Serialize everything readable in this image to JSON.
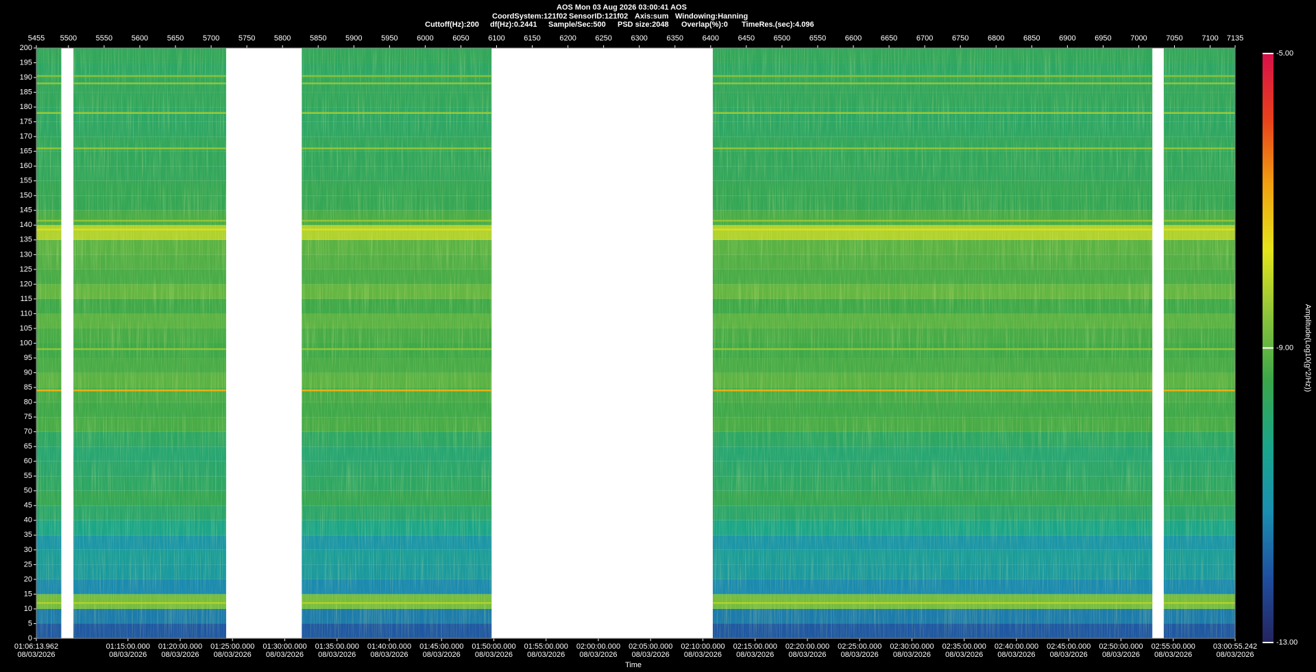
{
  "chart_data": {
    "type": "spectrogram",
    "title": "AOS  Mon 03 Aug 2026 03:00:41  AOS",
    "info_line1": [
      "CoordSystem:121f02",
      "SensorID:121f02",
      "Axis:sum",
      "Windowing:Hanning"
    ],
    "info_line2": [
      "Cuttoff(Hz):200",
      "df(Hz):0.2441",
      "Sample/Sec:500",
      "PSD size:2048",
      "Overlap(%):0",
      "TimeRes.(sec):4.096"
    ],
    "x_label": "Time",
    "colorbar_label": "Amplitude(Log10(g^2/Hz))",
    "xlim": [
      5455,
      7135
    ],
    "xticks": [
      5455,
      5500,
      5550,
      5600,
      5650,
      5700,
      5750,
      5800,
      5850,
      5900,
      5950,
      6000,
      6050,
      6100,
      6150,
      6200,
      6250,
      6300,
      6350,
      6400,
      6450,
      6500,
      6550,
      6600,
      6650,
      6700,
      6750,
      6800,
      6850,
      6900,
      6950,
      7000,
      7050,
      7100,
      7135
    ],
    "time_ticks": [
      {
        "value": 5455,
        "label": "01:06:13.962",
        "date": "08/03/2026"
      },
      {
        "value": 5583.43,
        "label": "01:15:00.000",
        "date": "08/03/2026"
      },
      {
        "value": 5656.67,
        "label": "01:20:00.000",
        "date": "08/03/2026"
      },
      {
        "value": 5729.91,
        "label": "01:25:00.000",
        "date": "08/03/2026"
      },
      {
        "value": 5803.16,
        "label": "01:30:00.000",
        "date": "08/03/2026"
      },
      {
        "value": 5876.4,
        "label": "01:35:00.000",
        "date": "08/03/2026"
      },
      {
        "value": 5949.64,
        "label": "01:40:00.000",
        "date": "08/03/2026"
      },
      {
        "value": 6022.88,
        "label": "01:45:00.000",
        "date": "08/03/2026"
      },
      {
        "value": 6096.13,
        "label": "01:50:00.000",
        "date": "08/03/2026"
      },
      {
        "value": 6169.37,
        "label": "01:55:00.000",
        "date": "08/03/2026"
      },
      {
        "value": 6242.61,
        "label": "02:00:00.000",
        "date": "08/03/2026"
      },
      {
        "value": 6315.85,
        "label": "02:05:00.000",
        "date": "08/03/2026"
      },
      {
        "value": 6389.1,
        "label": "02:10:00.000",
        "date": "08/03/2026"
      },
      {
        "value": 6462.34,
        "label": "02:15:00.000",
        "date": "08/03/2026"
      },
      {
        "value": 6535.58,
        "label": "02:20:00.000",
        "date": "08/03/2026"
      },
      {
        "value": 6608.82,
        "label": "02:25:00.000",
        "date": "08/03/2026"
      },
      {
        "value": 6682.07,
        "label": "02:30:00.000",
        "date": "08/03/2026"
      },
      {
        "value": 6755.31,
        "label": "02:35:00.000",
        "date": "08/03/2026"
      },
      {
        "value": 6828.55,
        "label": "02:40:00.000",
        "date": "08/03/2026"
      },
      {
        "value": 6901.79,
        "label": "02:45:00.000",
        "date": "08/03/2026"
      },
      {
        "value": 6975.04,
        "label": "02:50:00.000",
        "date": "08/03/2026"
      },
      {
        "value": 7048.28,
        "label": "02:55:00.000",
        "date": "08/03/2026"
      },
      {
        "value": 7135,
        "label": "03:00:55.242",
        "date": "08/03/2026"
      }
    ],
    "ylim": [
      0,
      200
    ],
    "yticks": [
      0,
      5,
      10,
      15,
      20,
      25,
      30,
      35,
      40,
      45,
      50,
      55,
      60,
      65,
      70,
      75,
      80,
      85,
      90,
      95,
      100,
      105,
      110,
      115,
      120,
      125,
      130,
      135,
      140,
      145,
      150,
      155,
      160,
      165,
      170,
      175,
      180,
      185,
      190,
      195,
      200
    ],
    "segments": [
      [
        5455,
        5490
      ],
      [
        5507,
        5721
      ],
      [
        5827,
        6093
      ],
      [
        6403,
        7019
      ],
      [
        7035,
        7135
      ]
    ],
    "band_edges": [
      0,
      5,
      10,
      15,
      20,
      25,
      30,
      35,
      40,
      45,
      50,
      55,
      60,
      65,
      70,
      75,
      80,
      85,
      90,
      95,
      100,
      105,
      110,
      115,
      120,
      125,
      130,
      135,
      140,
      145,
      150,
      155,
      160,
      165,
      170,
      175,
      180,
      185,
      190,
      195,
      200
    ],
    "z": [
      -12,
      -11.5,
      -8.8,
      -11.3,
      -10.8,
      -10.7,
      -11,
      -10.3,
      -9.9,
      -9.6,
      -9.8,
      -9.9,
      -10,
      -9.8,
      -9.3,
      -9.4,
      -9.3,
      -9.1,
      -9.3,
      -9.4,
      -9.3,
      -9.1,
      -9.4,
      -9,
      -9.3,
      -9.2,
      -9.1,
      -8.2,
      -9.3,
      -9.6,
      -9.6,
      -9.7,
      -9.7,
      -9.7,
      -9.8,
      -9.8,
      -9.7,
      -9.7,
      -9.8,
      -9.7
    ],
    "tones": [
      {
        "freq": 84,
        "amplitude": -7
      },
      {
        "freq": 98,
        "amplitude": -8.5
      },
      {
        "freq": 138.5,
        "amplitude": -7.8
      },
      {
        "freq": 141.5,
        "amplitude": -8.5
      },
      {
        "freq": 166,
        "amplitude": -8.5
      },
      {
        "freq": 178,
        "amplitude": -8.4
      },
      {
        "freq": 188,
        "amplitude": -8.5
      },
      {
        "freq": 190.5,
        "amplitude": -8.6
      },
      {
        "freq": 12,
        "amplitude": -8.2
      }
    ],
    "clim": [
      -13,
      -5
    ],
    "cticks": [
      {
        "value": -13,
        "label": "-13.00"
      },
      {
        "value": -9,
        "label": "-9.00"
      },
      {
        "value": -5,
        "label": "-5.00"
      }
    ],
    "colormap": [
      "#24245e",
      "#1f4fa0",
      "#1a8fb0",
      "#1aa58a",
      "#3aa64a",
      "#8cc43a",
      "#e5e51a",
      "#f0a010",
      "#e8401c",
      "#d8104a"
    ]
  }
}
